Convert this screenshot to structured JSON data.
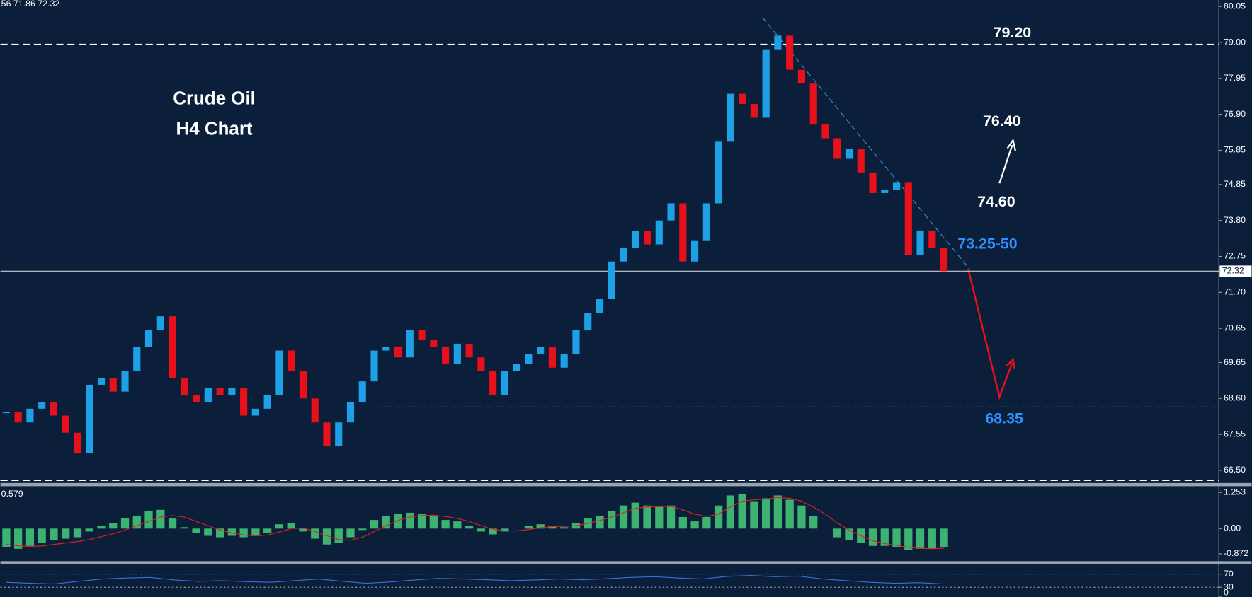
{
  "header": {
    "ohlc_text": "56 71.86 72.32"
  },
  "chart_data": [
    {
      "type": "candlestick",
      "title": "Crude Oil",
      "subtitle": "H4 Chart",
      "values": [
        68.2,
        67.9,
        68.3,
        68.5,
        68.1,
        67.6,
        67.0,
        69.0,
        69.2,
        68.8,
        69.4,
        70.1,
        70.6,
        71.0,
        69.2,
        68.7,
        68.5,
        68.9,
        68.7,
        68.9,
        68.1,
        68.3,
        68.7,
        70.0,
        69.4,
        68.6,
        67.9,
        67.2,
        67.9,
        68.5,
        69.1,
        70.0,
        70.1,
        69.8,
        70.6,
        70.3,
        70.1,
        69.6,
        70.2,
        69.8,
        69.4,
        68.7,
        69.4,
        69.6,
        69.9,
        70.1,
        69.5,
        69.9,
        70.6,
        71.1,
        71.5,
        72.6,
        73.0,
        73.5,
        73.1,
        73.8,
        74.3,
        72.6,
        73.2,
        74.3,
        76.1,
        77.5,
        77.2,
        76.8,
        78.8,
        79.2,
        78.2,
        77.8,
        76.6,
        76.2,
        75.6,
        75.9,
        75.2,
        74.6,
        74.7,
        74.9,
        72.8,
        73.5,
        73.0,
        72.32
      ],
      "up_color": "#1ea0e6",
      "down_color": "#e8101a",
      "ylim": [
        66.13,
        80.24
      ],
      "yticks": [
        80.05,
        {
          "value": 79,
          "label": "79.00"
        },
        77.95,
        {
          "value": 76.9,
          "label": "76.90"
        },
        75.85,
        74.85,
        {
          "value": 73.8,
          "label": "73.80"
        },
        72.75,
        {
          "value": 71.7,
          "label": "71.70"
        },
        70.65,
        69.65,
        {
          "value": 68.6,
          "label": "68.60"
        },
        67.55,
        {
          "value": 66.5,
          "label": "66.50"
        }
      ],
      "last_price": 72.32,
      "hlines": [
        {
          "value": 78.95,
          "color": "#ffffff",
          "style": "dashed"
        },
        {
          "value": 68.35,
          "color": "#3d8fe0",
          "style": "dashed"
        },
        {
          "value": 72.32,
          "color": "#c8ccd4",
          "style": "solid"
        },
        {
          "value": 66.2,
          "color": "#ffffff",
          "style": "dashed"
        }
      ],
      "trendline": {
        "values": [
          79.73,
          72.37
        ],
        "color": "#3d8fe0"
      },
      "annotations": [
        {
          "text": "79.20",
          "color": "#ffffff"
        },
        {
          "text": "76.40",
          "color": "#ffffff"
        },
        {
          "text": "74.60",
          "color": "#ffffff"
        },
        {
          "text": "73.25-50",
          "color": "#2f8fff"
        },
        {
          "text": "68.35",
          "color": "#2f8fff"
        }
      ]
    },
    {
      "type": "bar",
      "label": "0.579",
      "color": "#3cb371",
      "values": [
        -0.65,
        -0.7,
        -0.6,
        -0.5,
        -0.4,
        -0.35,
        -0.3,
        -0.1,
        0.1,
        0.2,
        0.35,
        0.45,
        0.6,
        0.65,
        0.35,
        0.05,
        -0.15,
        -0.25,
        -0.3,
        -0.25,
        -0.3,
        -0.25,
        -0.15,
        0.15,
        0.2,
        -0.1,
        -0.35,
        -0.55,
        -0.5,
        -0.3,
        -0.05,
        0.3,
        0.45,
        0.5,
        0.55,
        0.5,
        0.45,
        0.3,
        0.25,
        0.1,
        -0.1,
        -0.2,
        -0.1,
        0.0,
        0.1,
        0.15,
        0.1,
        0.05,
        0.2,
        0.35,
        0.45,
        0.6,
        0.8,
        0.9,
        0.8,
        0.75,
        0.8,
        0.4,
        0.25,
        0.4,
        0.8,
        1.15,
        1.2,
        0.95,
        1.05,
        1.15,
        1.0,
        0.8,
        0.45,
        0.0,
        -0.3,
        -0.4,
        -0.5,
        -0.6,
        -0.6,
        -0.65,
        -0.75,
        -0.7,
        -0.7,
        -0.65
      ],
      "signal": {
        "color": "#e02020",
        "values": [
          -0.55,
          -0.6,
          -0.62,
          -0.6,
          -0.55,
          -0.5,
          -0.45,
          -0.38,
          -0.28,
          -0.18,
          -0.05,
          0.1,
          0.25,
          0.4,
          0.45,
          0.4,
          0.25,
          0.1,
          -0.05,
          -0.15,
          -0.22,
          -0.25,
          -0.22,
          -0.12,
          0.0,
          0.02,
          -0.1,
          -0.25,
          -0.38,
          -0.4,
          -0.3,
          -0.1,
          0.1,
          0.28,
          0.4,
          0.45,
          0.47,
          0.42,
          0.35,
          0.25,
          0.1,
          -0.02,
          -0.08,
          -0.08,
          -0.03,
          0.03,
          0.07,
          0.08,
          0.1,
          0.18,
          0.28,
          0.4,
          0.55,
          0.7,
          0.75,
          0.76,
          0.77,
          0.65,
          0.5,
          0.42,
          0.5,
          0.75,
          0.95,
          1.0,
          1.02,
          1.08,
          1.05,
          0.95,
          0.75,
          0.5,
          0.2,
          -0.05,
          -0.25,
          -0.42,
          -0.52,
          -0.58,
          -0.65,
          -0.68,
          -0.7,
          -0.68
        ]
      },
      "ylim": [
        -1.1,
        1.47
      ],
      "yticks": [
        1.253,
        {
          "value": 0,
          "label": "0.00"
        },
        -0.872
      ]
    },
    {
      "type": "line",
      "color": "#3a6fd8",
      "values": [
        45,
        42,
        40,
        48,
        55,
        58,
        60,
        52,
        48,
        50,
        47,
        45,
        50,
        55,
        48,
        42,
        46,
        52,
        57,
        55,
        53,
        50,
        52,
        55,
        53,
        56,
        60,
        62,
        58,
        55,
        63,
        66,
        62,
        64,
        55,
        50,
        45,
        42,
        44,
        40
      ],
      "ylim": [
        0,
        100
      ],
      "yticks": [
        70,
        30,
        0
      ]
    }
  ]
}
